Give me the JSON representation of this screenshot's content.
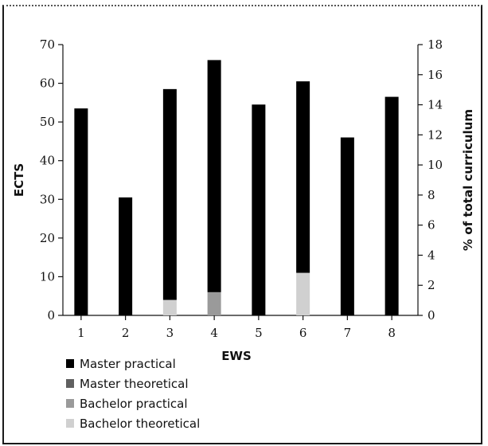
{
  "chart_data": {
    "type": "bar",
    "stacked": true,
    "categories": [
      "1",
      "2",
      "3",
      "4",
      "5",
      "6",
      "7",
      "8"
    ],
    "series": [
      {
        "name": "Master practical",
        "color": "#000000",
        "values": [
          53.5,
          30.5,
          54.5,
          60,
          54.5,
          49.5,
          46,
          56.5
        ]
      },
      {
        "name": "Master theoretical",
        "color": "#606060",
        "values": [
          0,
          0,
          0,
          0,
          0,
          0,
          0,
          0
        ]
      },
      {
        "name": "Bachelor practical",
        "color": "#9a9a9a",
        "values": [
          0,
          0,
          0,
          6,
          0,
          0,
          0,
          0
        ]
      },
      {
        "name": "Bachelor theoretical",
        "color": "#d0d0d0",
        "values": [
          0,
          0,
          4,
          0,
          0,
          11,
          0,
          0
        ]
      }
    ],
    "stack_order_bottom_to_top": [
      "Bachelor theoretical",
      "Bachelor practical",
      "Master theoretical",
      "Master practical"
    ],
    "xlabel": "EWS",
    "ylabel": "ECTS",
    "ylabel_right": "% of total curriculum",
    "ylim": [
      0,
      70
    ],
    "yticks": [
      0,
      10,
      20,
      30,
      40,
      50,
      60,
      70
    ],
    "ylim_right": [
      0,
      18
    ],
    "yticks_right": [
      0,
      2,
      4,
      6,
      8,
      10,
      12,
      14,
      16,
      18
    ],
    "legend_position": "bottom-left",
    "grid": false
  }
}
